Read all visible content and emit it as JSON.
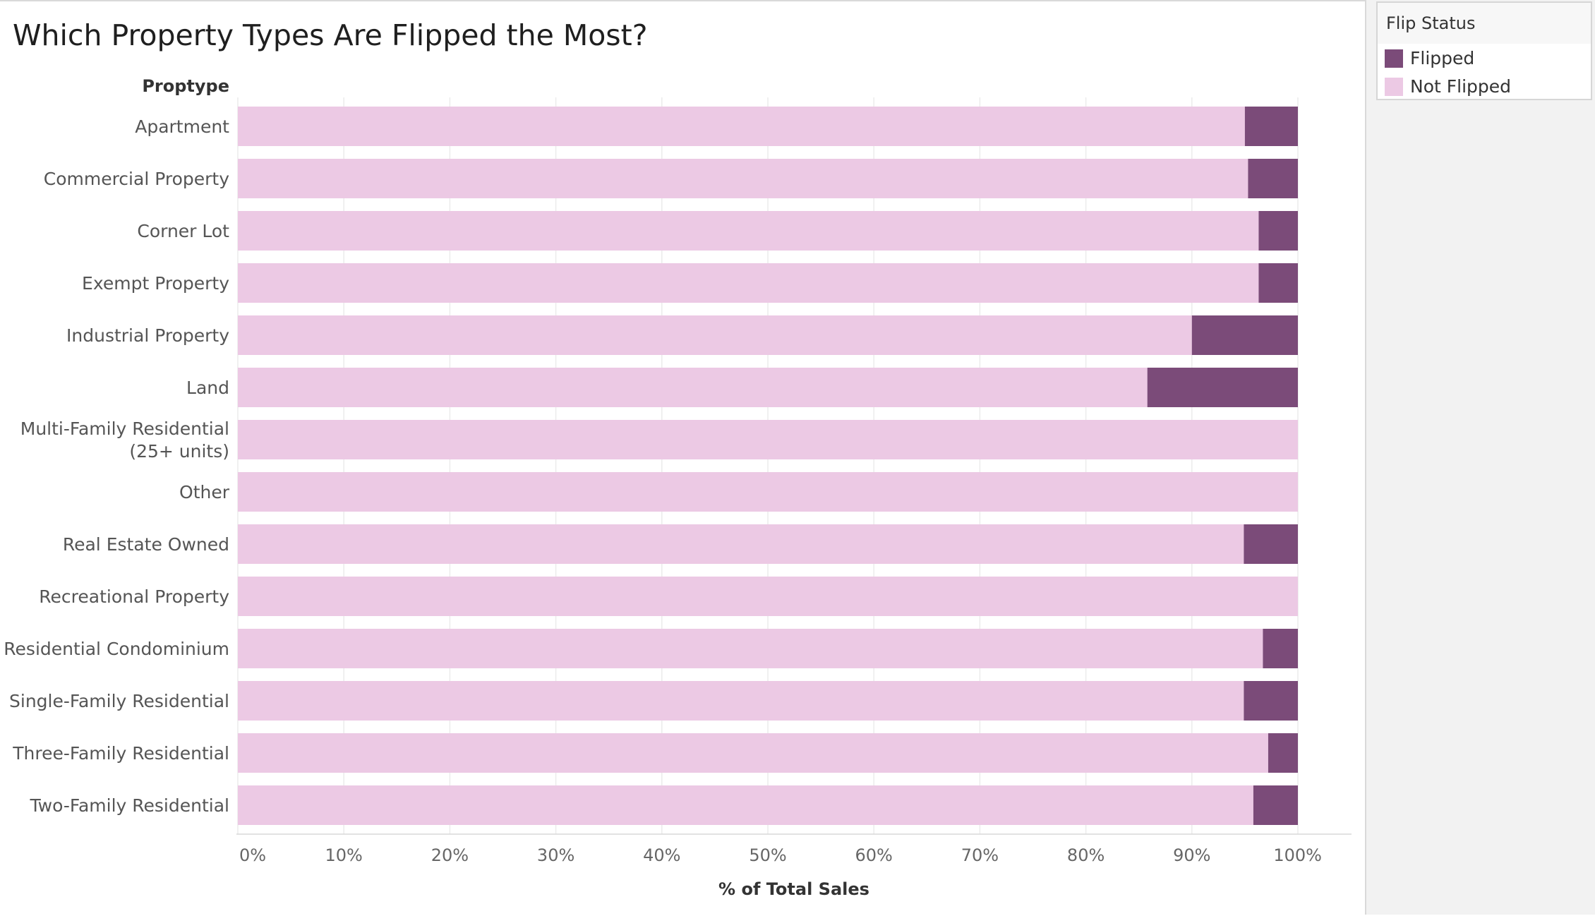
{
  "chart_data": {
    "type": "bar",
    "orientation": "horizontal",
    "stacked": "percent",
    "title": "Which Property Types Are Flipped the Most?",
    "row_header": "Proptype",
    "xlabel": "% of Total Sales",
    "xlim": [
      0,
      100
    ],
    "xticks": [
      "0%",
      "10%",
      "20%",
      "30%",
      "40%",
      "50%",
      "60%",
      "70%",
      "80%",
      "90%",
      "100%"
    ],
    "grid": true,
    "legend_title": "Flip Status",
    "legend_position": "right",
    "categories": [
      [
        "Apartment"
      ],
      [
        "Commercial Property"
      ],
      [
        "Corner Lot"
      ],
      [
        "Exempt Property"
      ],
      [
        "Industrial Property"
      ],
      [
        "Land"
      ],
      [
        "Multi-Family Residential",
        "(25+ units)"
      ],
      [
        "Other"
      ],
      [
        "Real Estate Owned"
      ],
      [
        "Recreational Property"
      ],
      [
        "Residential Condominium"
      ],
      [
        "Single-Family Residential"
      ],
      [
        "Three-Family Residential"
      ],
      [
        "Two-Family Residential"
      ]
    ],
    "series": [
      {
        "name": "Not Flipped",
        "color": "#ecc9e4",
        "values": [
          95.0,
          95.3,
          96.3,
          96.3,
          90.0,
          85.8,
          100,
          100,
          94.9,
          100,
          96.7,
          94.9,
          97.2,
          95.8
        ]
      },
      {
        "name": "Flipped",
        "color": "#7b4b79",
        "values": [
          5.0,
          4.7,
          3.7,
          3.7,
          10.0,
          14.2,
          0,
          0,
          5.1,
          0,
          3.3,
          5.1,
          2.8,
          4.2
        ]
      }
    ]
  }
}
